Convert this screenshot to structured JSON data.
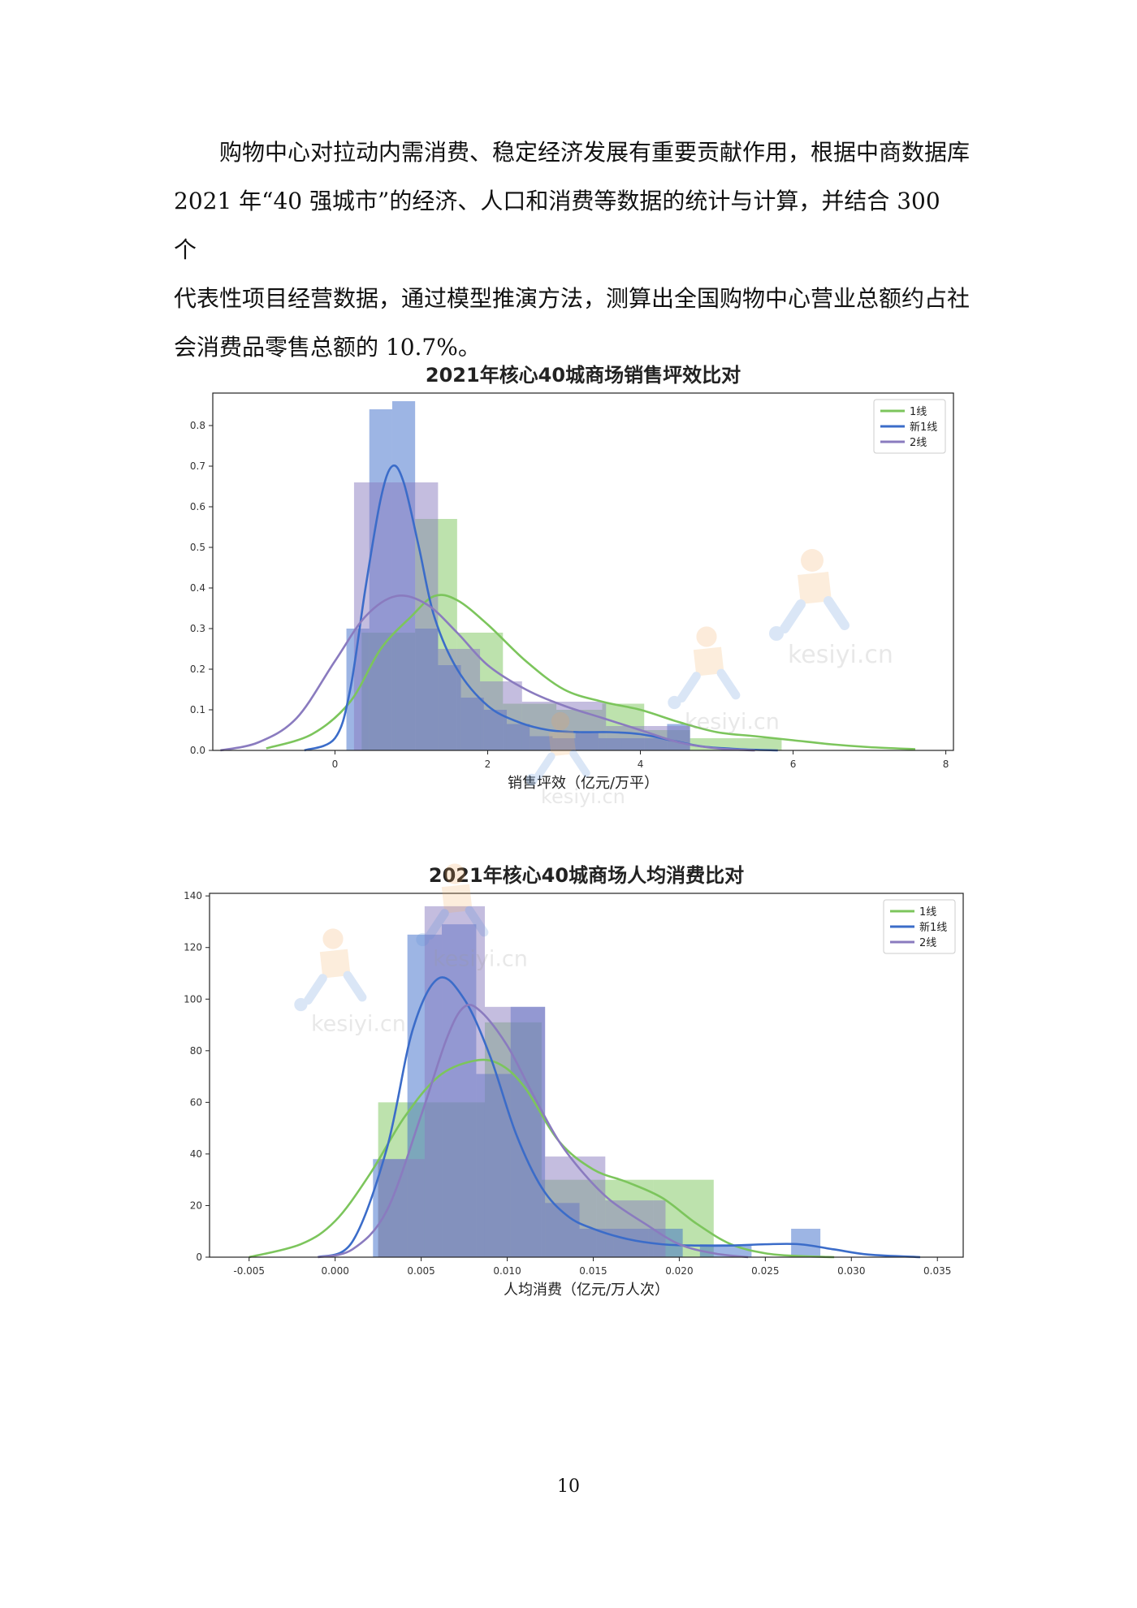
{
  "document": {
    "paragraph": [
      "购物中心对拉动内需消费、稳定经济发展有重要贡献作用，根据中商数据库",
      "2021 年“40 强城市”的经济、人口和消费等数据的统计与计算，并结合 300 个",
      "代表性项目经营数据，通过模型推演方法，测算出全国购物中心营业总额约占社",
      "会消费品零售总额的 10.7%。"
    ],
    "page_number": "10"
  },
  "watermark_text": "kesiyi.cn",
  "chart_data": [
    {
      "type": "histogram",
      "title": "2021年核心40城商场销售坪效比对",
      "xlabel": "销售坪效（亿元/万平）",
      "ylabel": "",
      "xlim": [
        -1.6,
        8.1
      ],
      "ylim": [
        0,
        0.88
      ],
      "xticks": [
        0,
        2,
        4,
        6,
        8
      ],
      "yticks": [
        0.0,
        0.1,
        0.2,
        0.3,
        0.4,
        0.5,
        0.6,
        0.7,
        0.8
      ],
      "grid": false,
      "legend_position": "top-right",
      "series": [
        {
          "name": "1线",
          "color": "#7cc55c",
          "bins": [
            {
              "x0": 0.35,
              "x1": 1.05,
              "value": 0.29
            },
            {
              "x0": 1.05,
              "x1": 1.6,
              "value": 0.57
            },
            {
              "x0": 1.6,
              "x1": 2.2,
              "value": 0.29
            },
            {
              "x0": 2.2,
              "x1": 2.9,
              "value": 0.115
            },
            {
              "x0": 2.9,
              "x1": 3.5,
              "value": 0.1
            },
            {
              "x0": 3.5,
              "x1": 4.05,
              "value": 0.115
            },
            {
              "x0": 4.05,
              "x1": 4.65,
              "value": 0.05
            },
            {
              "x0": 4.65,
              "x1": 5.25,
              "value": 0.03
            },
            {
              "x0": 5.25,
              "x1": 5.85,
              "value": 0.03
            }
          ],
          "kde": {
            "x": [
              -0.9,
              -0.3,
              0.2,
              0.6,
              1.0,
              1.3,
              1.6,
              2.0,
              2.5,
              3.0,
              3.5,
              4.0,
              4.5,
              5.0,
              5.5,
              6.0,
              6.5,
              7.0,
              7.6
            ],
            "y": [
              0.005,
              0.04,
              0.12,
              0.25,
              0.33,
              0.38,
              0.37,
              0.31,
              0.22,
              0.15,
              0.12,
              0.1,
              0.07,
              0.045,
              0.035,
              0.025,
              0.015,
              0.008,
              0.003
            ]
          }
        },
        {
          "name": "新1线",
          "color": "#3b6cc9",
          "bins": [
            {
              "x0": 0.15,
              "x1": 0.45,
              "value": 0.3
            },
            {
              "x0": 0.45,
              "x1": 0.75,
              "value": 0.84
            },
            {
              "x0": 0.75,
              "x1": 1.05,
              "value": 0.86
            },
            {
              "x0": 1.05,
              "x1": 1.35,
              "value": 0.3
            },
            {
              "x0": 1.35,
              "x1": 1.65,
              "value": 0.21
            },
            {
              "x0": 1.65,
              "x1": 1.95,
              "value": 0.13
            },
            {
              "x0": 1.95,
              "x1": 2.25,
              "value": 0.1
            },
            {
              "x0": 2.25,
              "x1": 2.55,
              "value": 0.065
            },
            {
              "x0": 2.55,
              "x1": 2.85,
              "value": 0.035
            },
            {
              "x0": 2.85,
              "x1": 3.15,
              "value": 0.03
            },
            {
              "x0": 3.15,
              "x1": 3.45,
              "value": 0.045
            },
            {
              "x0": 3.45,
              "x1": 3.75,
              "value": 0.03
            },
            {
              "x0": 3.75,
              "x1": 4.05,
              "value": 0.03
            },
            {
              "x0": 4.05,
              "x1": 4.35,
              "value": 0.03
            },
            {
              "x0": 4.35,
              "x1": 4.65,
              "value": 0.065
            }
          ],
          "kde": {
            "x": [
              -0.4,
              0.0,
              0.2,
              0.4,
              0.6,
              0.75,
              0.9,
              1.1,
              1.3,
              1.6,
              2.0,
              2.4,
              2.8,
              3.2,
              3.6,
              4.0,
              4.4,
              4.8,
              5.3,
              5.8
            ],
            "y": [
              0.0,
              0.03,
              0.15,
              0.4,
              0.62,
              0.7,
              0.66,
              0.5,
              0.33,
              0.2,
              0.11,
              0.07,
              0.05,
              0.045,
              0.045,
              0.04,
              0.025,
              0.01,
              0.003,
              0.0
            ]
          }
        },
        {
          "name": "2线",
          "color": "#8a7bbf",
          "bins": [
            {
              "x0": 0.25,
              "x1": 0.8,
              "value": 0.66
            },
            {
              "x0": 0.8,
              "x1": 1.35,
              "value": 0.66
            },
            {
              "x0": 1.35,
              "x1": 1.9,
              "value": 0.25
            },
            {
              "x0": 1.9,
              "x1": 2.45,
              "value": 0.17
            },
            {
              "x0": 2.45,
              "x1": 3.0,
              "value": 0.12
            },
            {
              "x0": 3.0,
              "x1": 3.55,
              "value": 0.12
            },
            {
              "x0": 3.55,
              "x1": 4.1,
              "value": 0.06
            },
            {
              "x0": 4.1,
              "x1": 4.65,
              "value": 0.06
            }
          ],
          "kde": {
            "x": [
              -1.5,
              -1.0,
              -0.5,
              0.0,
              0.4,
              0.8,
              1.2,
              1.6,
              2.0,
              2.5,
              3.0,
              3.5,
              4.0,
              4.5,
              5.0,
              5.5
            ],
            "y": [
              0.0,
              0.02,
              0.08,
              0.22,
              0.33,
              0.38,
              0.36,
              0.29,
              0.21,
              0.15,
              0.11,
              0.08,
              0.05,
              0.02,
              0.005,
              0.0
            ]
          }
        }
      ]
    },
    {
      "type": "histogram",
      "title": "2021年核心40城商场人均消费比对",
      "xlabel": "人均消费（亿元/万人次）",
      "ylabel": "",
      "xlim": [
        -0.0073,
        0.0365
      ],
      "ylim": [
        0,
        141
      ],
      "xticks": [
        -0.005,
        0.0,
        0.005,
        0.01,
        0.015,
        0.02,
        0.025,
        0.03,
        0.035
      ],
      "xtick_labels": [
        "-0.005",
        "0.000",
        "0.005",
        "0.010",
        "0.015",
        "0.020",
        "0.025",
        "0.030",
        "0.035"
      ],
      "yticks": [
        0,
        20,
        40,
        60,
        80,
        100,
        120,
        140
      ],
      "grid": false,
      "legend_position": "top-right",
      "series": [
        {
          "name": "1线",
          "color": "#7cc55c",
          "bins": [
            {
              "x0": 0.0025,
              "x1": 0.0055,
              "value": 60
            },
            {
              "x0": 0.0055,
              "x1": 0.0087,
              "value": 60
            },
            {
              "x0": 0.0087,
              "x1": 0.012,
              "value": 91
            },
            {
              "x0": 0.012,
              "x1": 0.0152,
              "value": 30
            },
            {
              "x0": 0.0152,
              "x1": 0.0185,
              "value": 30
            },
            {
              "x0": 0.0185,
              "x1": 0.022,
              "value": 30
            }
          ],
          "kde": {
            "x": [
              -0.005,
              -0.002,
              0.0,
              0.002,
              0.004,
              0.006,
              0.008,
              0.0095,
              0.011,
              0.013,
              0.015,
              0.017,
              0.019,
              0.021,
              0.023,
              0.025,
              0.027,
              0.029
            ],
            "y": [
              0,
              5,
              14,
              32,
              54,
              70,
              76,
              75,
              66,
              45,
              34,
              29,
              23,
              13,
              5,
              1.5,
              0.4,
              0
            ]
          }
        },
        {
          "name": "新1线",
          "color": "#3b6cc9",
          "bins": [
            {
              "x0": 0.0022,
              "x1": 0.0042,
              "value": 38
            },
            {
              "x0": 0.0042,
              "x1": 0.0062,
              "value": 125
            },
            {
              "x0": 0.0062,
              "x1": 0.0082,
              "value": 129
            },
            {
              "x0": 0.0082,
              "x1": 0.0102,
              "value": 71
            },
            {
              "x0": 0.0102,
              "x1": 0.0122,
              "value": 97
            },
            {
              "x0": 0.0122,
              "x1": 0.0142,
              "value": 21
            },
            {
              "x0": 0.0142,
              "x1": 0.0162,
              "value": 11
            },
            {
              "x0": 0.0162,
              "x1": 0.0182,
              "value": 11
            },
            {
              "x0": 0.0182,
              "x1": 0.0202,
              "value": 11
            },
            {
              "x0": 0.0212,
              "x1": 0.0242,
              "value": 5
            },
            {
              "x0": 0.0265,
              "x1": 0.0282,
              "value": 11
            }
          ],
          "kde": {
            "x": [
              -0.001,
              0.001,
              0.003,
              0.0045,
              0.006,
              0.0075,
              0.009,
              0.0105,
              0.012,
              0.0135,
              0.015,
              0.017,
              0.019,
              0.021,
              0.023,
              0.025,
              0.027,
              0.029,
              0.031,
              0.034
            ],
            "y": [
              0,
              6,
              42,
              88,
              108,
              100,
              78,
              48,
              27,
              16,
              11,
              7,
              5,
              4.5,
              4.5,
              5,
              5,
              3,
              1,
              0
            ]
          }
        },
        {
          "name": "2线",
          "color": "#8a7bbf",
          "bins": [
            {
              "x0": 0.0025,
              "x1": 0.0052,
              "value": 38
            },
            {
              "x0": 0.0052,
              "x1": 0.0087,
              "value": 136
            },
            {
              "x0": 0.0087,
              "x1": 0.0122,
              "value": 97
            },
            {
              "x0": 0.0122,
              "x1": 0.0157,
              "value": 39
            },
            {
              "x0": 0.0157,
              "x1": 0.0192,
              "value": 22
            }
          ],
          "kde": {
            "x": [
              -0.001,
              0.001,
              0.003,
              0.005,
              0.0065,
              0.0075,
              0.0085,
              0.01,
              0.0115,
              0.013,
              0.0145,
              0.016,
              0.018,
              0.02,
              0.022,
              0.024
            ],
            "y": [
              0,
              3,
              18,
              55,
              85,
              97,
              95,
              82,
              63,
              45,
              32,
              22,
              13,
              5,
              1.5,
              0
            ]
          }
        }
      ]
    }
  ]
}
